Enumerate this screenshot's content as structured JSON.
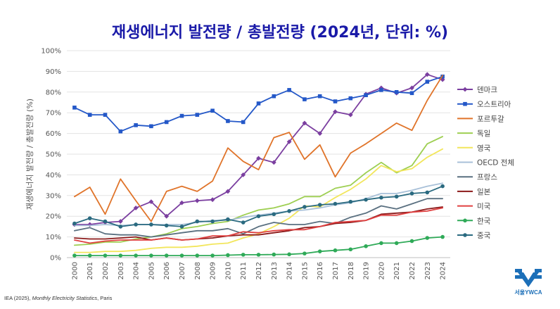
{
  "chart_data": {
    "type": "line",
    "title": "재생에너지 발전량 / 총발전량 (2024년, 단위: %)",
    "ylabel": "재생에너지 발전량 / 총발전량 (%)",
    "xlabel": "",
    "ylim": [
      0,
      100
    ],
    "yticks": [
      "0%",
      "10%",
      "20%",
      "30%",
      "40%",
      "50%",
      "60%",
      "70%",
      "80%",
      "90%",
      "100%"
    ],
    "x": [
      "2000",
      "2001",
      "2002",
      "2003",
      "2004",
      "2005",
      "2006",
      "2007",
      "2008",
      "2009",
      "2010",
      "2011",
      "2012",
      "2013",
      "2014",
      "2015",
      "2016",
      "2017",
      "2018",
      "2019",
      "2020",
      "2021",
      "2022",
      "2023",
      "2024"
    ],
    "grid": true,
    "legend_position": "right",
    "series": [
      {
        "name": "덴마크",
        "color": "#7b3fa0",
        "marker": "diamond",
        "values": [
          16,
          16,
          17,
          17.5,
          24,
          27,
          20,
          26.5,
          27.5,
          28,
          32,
          40,
          48,
          46,
          56,
          65,
          60,
          70.5,
          69,
          79,
          82,
          79.5,
          82,
          88.5,
          86
        ]
      },
      {
        "name": "오스트리아",
        "color": "#2458c8",
        "marker": "square",
        "values": [
          72.5,
          69,
          69,
          61,
          64,
          63.5,
          65.5,
          68.5,
          69,
          71,
          66,
          65.5,
          74.5,
          78,
          81,
          76.5,
          78,
          75.5,
          77,
          78.5,
          81,
          80,
          79.5,
          85,
          87.5
        ]
      },
      {
        "name": "포르투갈",
        "color": "#e0742a",
        "marker": "none",
        "values": [
          29.5,
          34,
          21,
          38,
          27.5,
          17.5,
          32,
          34.5,
          32,
          37,
          53,
          46.5,
          42.5,
          58,
          60.5,
          47.5,
          54.5,
          39,
          50.5,
          55,
          60,
          65,
          61.5,
          76,
          88
        ]
      },
      {
        "name": "독일",
        "color": "#9ecf52",
        "marker": "none",
        "values": [
          6,
          6.5,
          7.5,
          7.5,
          9,
          10,
          11.5,
          14,
          15,
          16.5,
          17.5,
          20.5,
          23,
          24,
          26,
          29.5,
          29.5,
          33.5,
          35,
          41,
          46,
          41,
          44.5,
          55,
          58.5
        ]
      },
      {
        "name": "영국",
        "color": "#f2e65c",
        "marker": "none",
        "values": [
          2.5,
          2.5,
          3,
          3,
          3.5,
          4.5,
          5,
          5,
          5.5,
          6.5,
          7,
          9.5,
          11.5,
          15,
          19,
          25,
          24.5,
          29,
          33,
          38,
          44.5,
          41.5,
          43,
          48.5,
          52.5
        ]
      },
      {
        "name": "OECD 전체",
        "color": "#a8c0d8",
        "marker": "none",
        "values": [
          15.5,
          15.5,
          16,
          15.5,
          16,
          16,
          16,
          16,
          17,
          18,
          18,
          19.5,
          20.5,
          21.5,
          22.5,
          23,
          24,
          25.5,
          26.5,
          28.5,
          31,
          31,
          32.5,
          34.5,
          36
        ]
      },
      {
        "name": "프랑스",
        "color": "#5a7080",
        "marker": "none",
        "values": [
          13,
          14.5,
          11.5,
          11,
          11,
          10,
          11,
          12,
          13,
          13,
          14,
          11.5,
          15,
          17,
          16,
          16,
          17.5,
          16.5,
          19.5,
          21.5,
          25,
          23.5,
          26,
          28.5,
          28.5
        ]
      },
      {
        "name": "일본",
        "color": "#8b1a1a",
        "marker": "none",
        "values": [
          9.5,
          9,
          9,
          9.5,
          10,
          8.5,
          9.5,
          8.5,
          9,
          9.5,
          10.5,
          11,
          11,
          12,
          13,
          14.5,
          15,
          16.5,
          17,
          18,
          21,
          21.5,
          22,
          23.5,
          24.5
        ]
      },
      {
        "name": "미국",
        "color": "#e04040",
        "marker": "none",
        "values": [
          8.5,
          7,
          8,
          8.5,
          8.5,
          8.5,
          9.5,
          8.5,
          9,
          10.5,
          10.5,
          12.5,
          12,
          13,
          13.5,
          13.5,
          15,
          17,
          17.5,
          18,
          20.5,
          20.5,
          22,
          22.5,
          24
        ]
      },
      {
        "name": "한국",
        "color": "#2faa58",
        "marker": "circle",
        "values": [
          1,
          1,
          1,
          1,
          1,
          1,
          1,
          1,
          1,
          1,
          1.2,
          1.4,
          1.4,
          1.5,
          1.6,
          2,
          3,
          3.5,
          4,
          5.5,
          7,
          7,
          8,
          9.5,
          10
        ]
      },
      {
        "name": "중국",
        "color": "#2a6a80",
        "marker": "circle",
        "values": [
          16.5,
          19,
          17.5,
          15,
          16,
          16,
          15.5,
          15,
          17.5,
          17.5,
          18.5,
          17,
          20,
          21,
          22.5,
          24.5,
          25.5,
          26,
          27,
          28,
          29,
          29.5,
          31,
          31.5,
          34.5
        ]
      }
    ]
  },
  "source": {
    "prefix": "IEA (2025), ",
    "title": "Monthly Electricity Statistics",
    "suffix": ", Paris"
  },
  "logo": {
    "text": "서울YWCA"
  }
}
